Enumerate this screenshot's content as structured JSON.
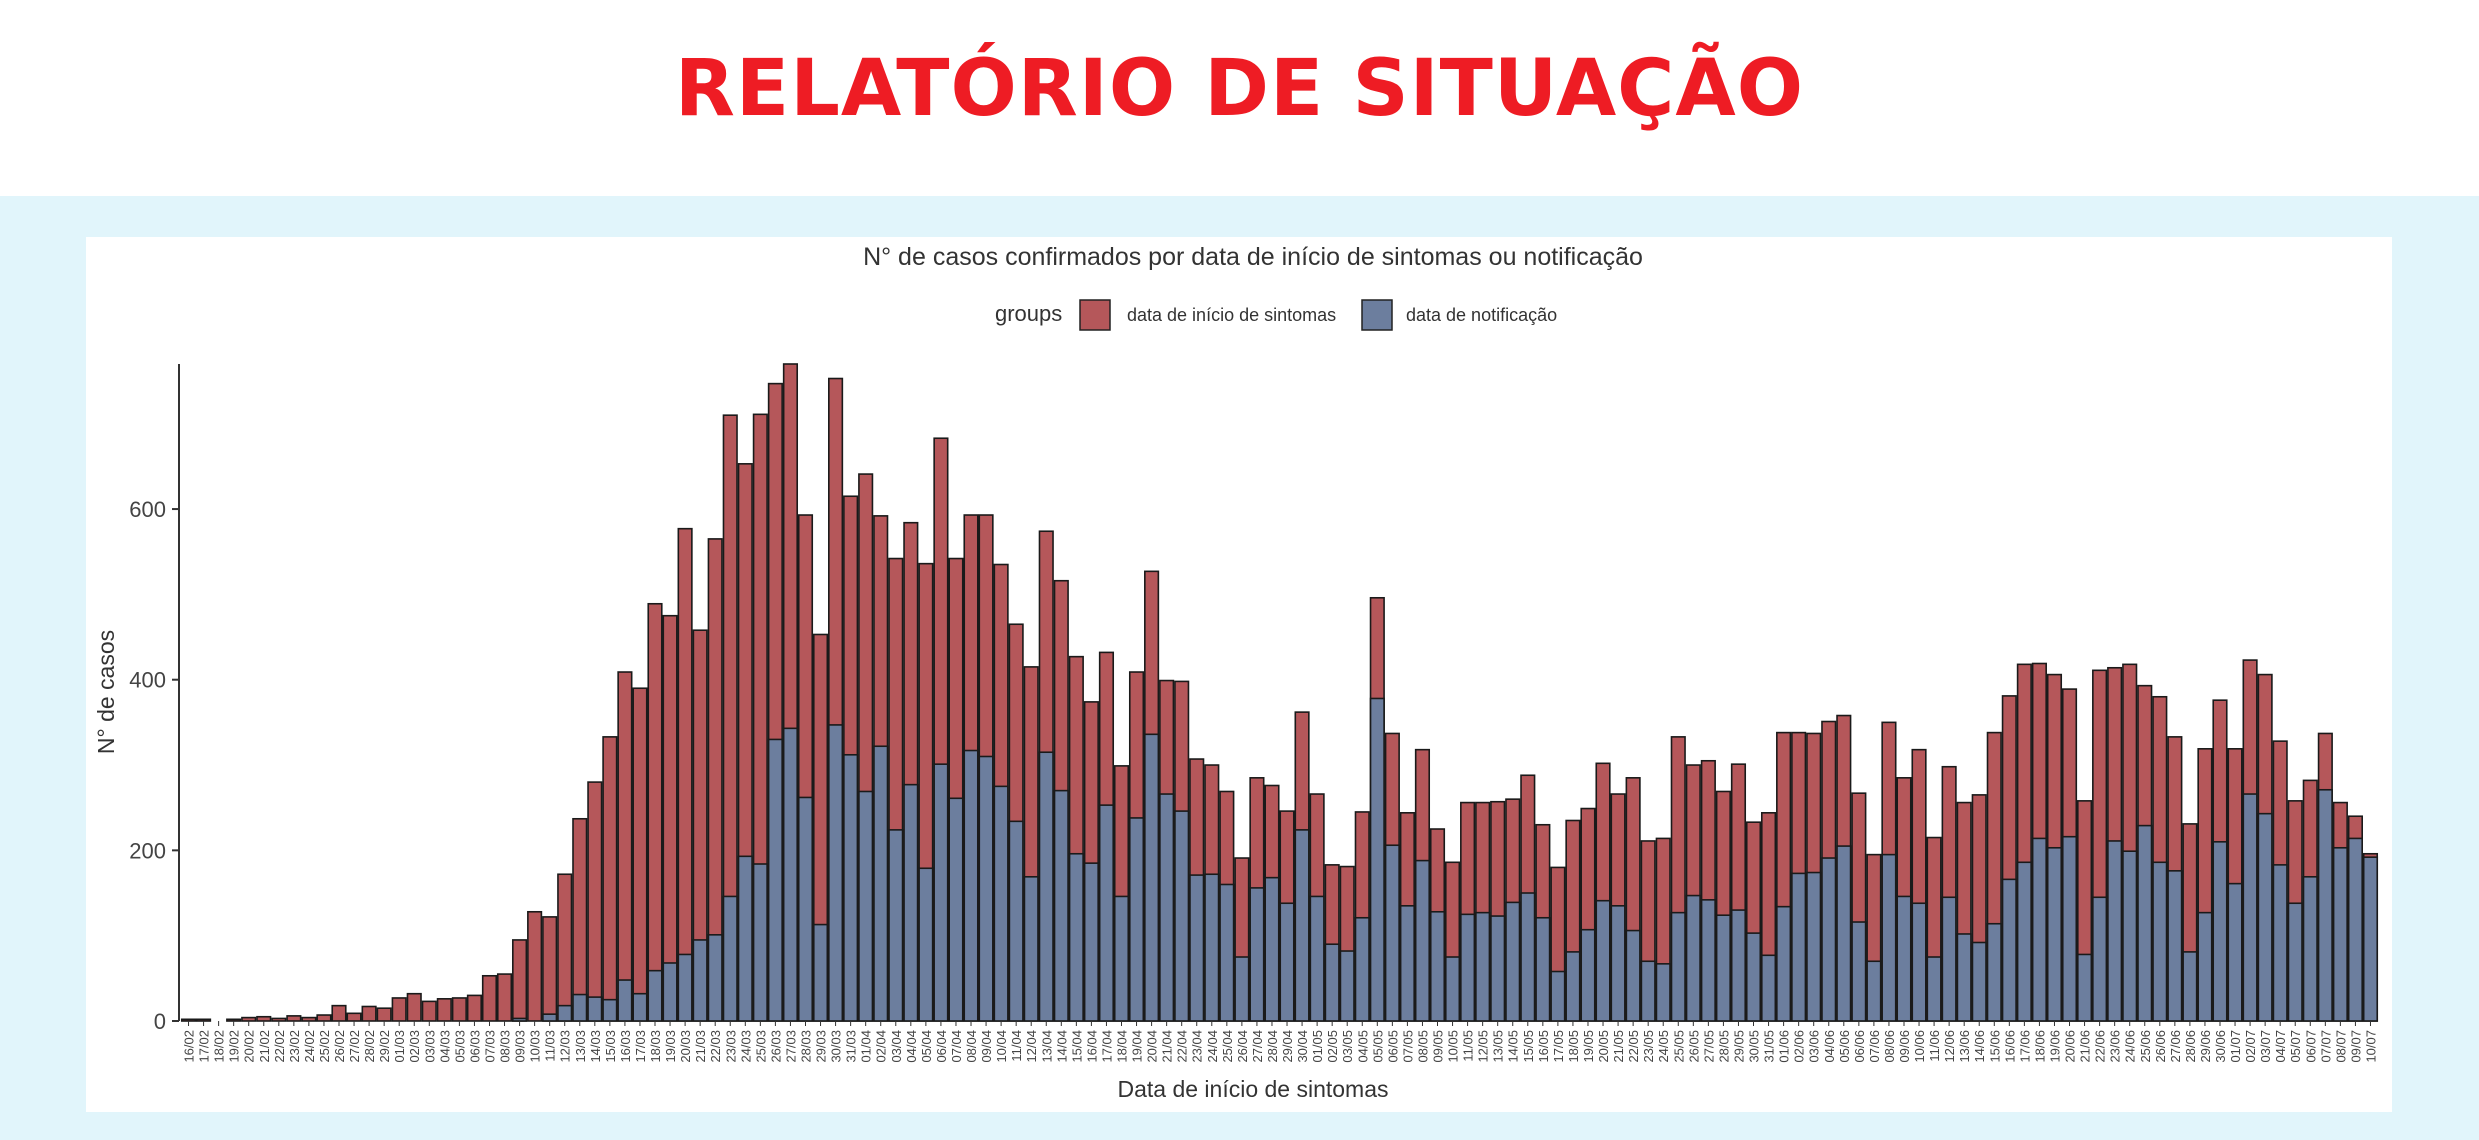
{
  "header": {
    "title": "RELATÓRIO DE SITUAÇÃO"
  },
  "chart_data": {
    "type": "bar",
    "stacking": "overlay",
    "title": "N° de casos confirmados por data de início de sintomas ou notificação",
    "xlabel": "Data de início de sintomas",
    "ylabel": "N° de casos",
    "ylim": [
      0,
      770
    ],
    "yticks": [
      0,
      200,
      400,
      600
    ],
    "grid": false,
    "legend": {
      "title": "groups",
      "position": "top"
    },
    "series": [
      {
        "name": "data de início de sintomas",
        "color": "#b5575a",
        "values": [
          2,
          2,
          0,
          2,
          4,
          5,
          3,
          6,
          4,
          7,
          18,
          9,
          17,
          15,
          27,
          32,
          23,
          26,
          27,
          30,
          53,
          55,
          95,
          128,
          122,
          172,
          237,
          280,
          333,
          409,
          390,
          489,
          475,
          577,
          458,
          565,
          710,
          653,
          711,
          747,
          770,
          593,
          453,
          753,
          615,
          641,
          592,
          542,
          584,
          536,
          683,
          542,
          593,
          593,
          535,
          465,
          415,
          574,
          516,
          427,
          374,
          432,
          299,
          409,
          527,
          399,
          398,
          307,
          300,
          269,
          191,
          285,
          276,
          246,
          362,
          266,
          183,
          181,
          245,
          496,
          337,
          244,
          318,
          225,
          186,
          256,
          256,
          257,
          260,
          288,
          230,
          180,
          235,
          249,
          302,
          266,
          285,
          211,
          214,
          333,
          300,
          305,
          269,
          301,
          233,
          244,
          338,
          338,
          337,
          351,
          358,
          267,
          195,
          350,
          285,
          318,
          215,
          298,
          256,
          265,
          338,
          381,
          418,
          419,
          406,
          389,
          258,
          411,
          414,
          418,
          393,
          380,
          333,
          231,
          319,
          376,
          319,
          423,
          406,
          328,
          258,
          282,
          337,
          256,
          240,
          196
        ]
      },
      {
        "name": "data de notificação",
        "color": "#6c7e9e",
        "values": [
          0,
          0,
          0,
          0,
          0,
          0,
          0,
          0,
          0,
          0,
          0,
          0,
          0,
          0,
          0,
          0,
          0,
          0,
          0,
          0,
          0,
          0,
          3,
          0,
          8,
          18,
          31,
          28,
          25,
          48,
          32,
          59,
          68,
          78,
          95,
          101,
          146,
          193,
          184,
          330,
          343,
          262,
          113,
          347,
          312,
          269,
          322,
          224,
          277,
          179,
          301,
          261,
          317,
          310,
          275,
          234,
          169,
          315,
          270,
          196,
          185,
          253,
          146,
          238,
          336,
          266,
          246,
          171,
          172,
          160,
          75,
          156,
          168,
          138,
          224,
          146,
          90,
          82,
          121,
          378,
          206,
          135,
          188,
          128,
          75,
          125,
          127,
          123,
          139,
          150,
          121,
          58,
          81,
          107,
          141,
          135,
          106,
          70,
          67,
          127,
          147,
          142,
          124,
          130,
          103,
          77,
          134,
          173,
          174,
          191,
          205,
          116,
          70,
          195,
          146,
          138,
          75,
          145,
          102,
          92,
          114,
          166,
          186,
          214,
          203,
          216,
          78,
          145,
          211,
          199,
          229,
          186,
          176,
          81,
          127,
          210,
          161,
          266,
          243,
          183,
          138,
          169,
          271,
          203,
          214,
          192
        ]
      }
    ],
    "x_labels": [
      "16/02",
      "17/02",
      "18/02",
      "19/02",
      "20/02",
      "21/02",
      "22/02",
      "23/02",
      "24/02",
      "25/02",
      "26/02",
      "27/02",
      "28/02",
      "29/02",
      "01/03",
      "02/03",
      "03/03",
      "04/03",
      "05/03",
      "06/03",
      "07/03",
      "08/03",
      "09/03",
      "10/03",
      "11/03",
      "12/03",
      "13/03",
      "14/03",
      "15/03",
      "16/03",
      "17/03",
      "18/03",
      "19/03",
      "20/03",
      "21/03",
      "22/03",
      "23/03",
      "24/03",
      "25/03",
      "26/03",
      "27/03",
      "28/03",
      "29/03",
      "30/03",
      "31/03",
      "01/04",
      "02/04",
      "03/04",
      "04/04",
      "05/04",
      "06/04",
      "07/04",
      "08/04",
      "09/04",
      "10/04",
      "11/04",
      "12/04",
      "13/04",
      "14/04",
      "15/04",
      "16/04",
      "17/04",
      "18/04",
      "19/04",
      "20/04",
      "21/04",
      "22/04",
      "23/04",
      "24/04",
      "25/04",
      "26/04",
      "27/04",
      "28/04",
      "29/04",
      "30/04",
      "01/05",
      "02/05",
      "03/05",
      "04/05",
      "05/05",
      "06/05",
      "07/05",
      "08/05",
      "09/05",
      "10/05",
      "11/05",
      "12/05",
      "13/05",
      "14/05",
      "15/05",
      "16/05",
      "17/05",
      "18/05",
      "19/05",
      "20/05",
      "21/05",
      "22/05",
      "23/05",
      "24/05",
      "25/05",
      "26/05",
      "27/05",
      "28/05",
      "29/05",
      "30/05",
      "31/05",
      "01/06",
      "02/06",
      "03/06",
      "04/06",
      "05/06",
      "06/06",
      "07/06",
      "08/06",
      "09/06",
      "10/06",
      "11/06",
      "12/06",
      "13/06",
      "14/06",
      "15/06",
      "16/06",
      "17/06",
      "18/06",
      "19/06",
      "20/06",
      "21/06",
      "22/06",
      "23/06",
      "24/06",
      "25/06",
      "26/06",
      "27/06",
      "28/06",
      "29/06",
      "30/06",
      "01/07",
      "02/07",
      "03/07",
      "04/07",
      "05/07",
      "06/07",
      "07/07",
      "08/07",
      "09/07",
      "10/07"
    ]
  }
}
